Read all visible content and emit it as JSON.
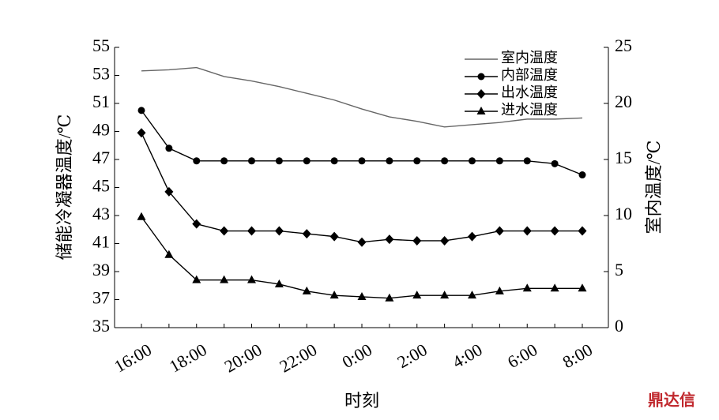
{
  "chart_data": {
    "type": "line",
    "x_label": "时刻",
    "y_label": "储能冷凝器温度/℃",
    "y2_label": "室内温度/℃",
    "categories": [
      "16:00",
      null,
      "18:00",
      null,
      "20:00",
      null,
      "22:00",
      null,
      "0:00",
      null,
      "2:00",
      null,
      "4:00",
      null,
      "6:00",
      null,
      "8:00"
    ],
    "ylim": [
      35,
      55
    ],
    "yticks": [
      35,
      37,
      39,
      41,
      43,
      45,
      47,
      49,
      51,
      53,
      55
    ],
    "y2lim": [
      0,
      25
    ],
    "y2ticks": [
      0,
      5,
      10,
      15,
      20,
      25
    ],
    "legend": "top-right",
    "series": [
      {
        "name": "室内温度",
        "color": "#666666",
        "marker": "none",
        "axis": "y2",
        "values": [
          22.9,
          23.0,
          23.2,
          22.4,
          22.0,
          21.5,
          20.9,
          20.3,
          19.5,
          18.8,
          18.4,
          17.9,
          18.1,
          18.3,
          18.6,
          18.6,
          18.7
        ]
      },
      {
        "name": "内部温度",
        "color": "#000000",
        "marker": "circle",
        "values": [
          50.5,
          47.8,
          46.9,
          46.9,
          46.9,
          46.9,
          46.9,
          46.9,
          46.9,
          46.9,
          46.9,
          46.9,
          46.9,
          46.9,
          46.9,
          46.7,
          45.9
        ]
      },
      {
        "name": "出水温度",
        "color": "#000000",
        "marker": "diamond",
        "values": [
          48.9,
          44.7,
          42.4,
          41.9,
          41.9,
          41.9,
          41.7,
          41.5,
          41.1,
          41.3,
          41.2,
          41.2,
          41.5,
          41.9,
          41.9,
          41.9,
          41.9
        ]
      },
      {
        "name": "进水温度",
        "color": "#000000",
        "marker": "triangle",
        "values": [
          42.9,
          40.2,
          38.4,
          38.4,
          38.4,
          38.1,
          37.6,
          37.3,
          37.2,
          37.1,
          37.3,
          37.3,
          37.3,
          37.6,
          37.8,
          37.8,
          37.8
        ]
      }
    ],
    "watermark": "鼎达信"
  }
}
